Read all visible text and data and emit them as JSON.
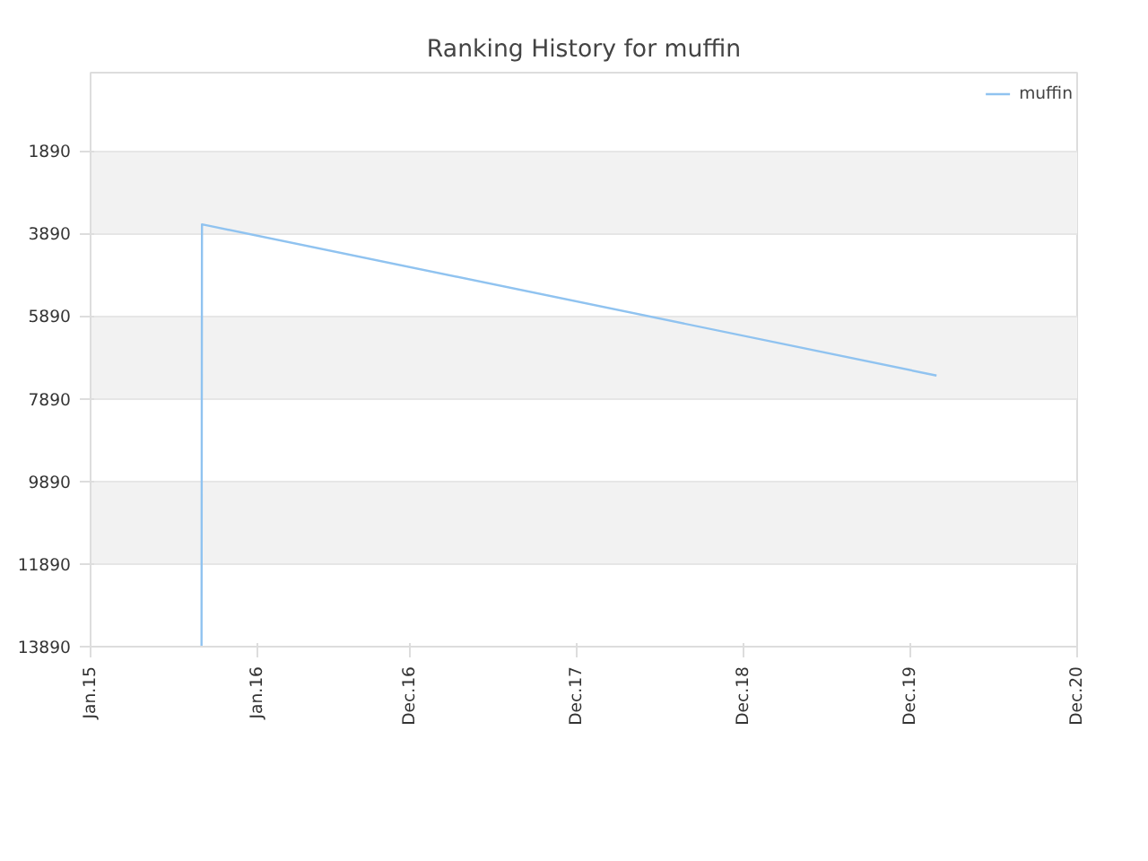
{
  "chart_data": {
    "type": "line",
    "title": "Ranking History for muffin",
    "x": [
      "2015-09-01",
      "2015-09-02",
      "2020-01-28"
    ],
    "series": [
      {
        "name": "muffin",
        "color": "#90c3f0",
        "values": [
          13890,
          3670,
          7330
        ]
      }
    ],
    "xlim": [
      "2015-01-01",
      "2020-12-01"
    ],
    "xticks": [
      {
        "value": "2015-01-01",
        "label": "Jan.15"
      },
      {
        "value": "2016-01-01",
        "label": "Jan.16"
      },
      {
        "value": "2016-12-01",
        "label": "Dec.16"
      },
      {
        "value": "2017-12-01",
        "label": "Dec.17"
      },
      {
        "value": "2018-12-01",
        "label": "Dec.18"
      },
      {
        "value": "2019-12-01",
        "label": "Dec.19"
      },
      {
        "value": "2020-12-01",
        "label": "Dec.20"
      }
    ],
    "ylim": [
      13890,
      0
    ],
    "yticks": [
      1890,
      3890,
      5890,
      7890,
      9890,
      11890,
      13890
    ],
    "grid": "y",
    "legend": "top right",
    "marker": "none",
    "line_style": "solid"
  }
}
